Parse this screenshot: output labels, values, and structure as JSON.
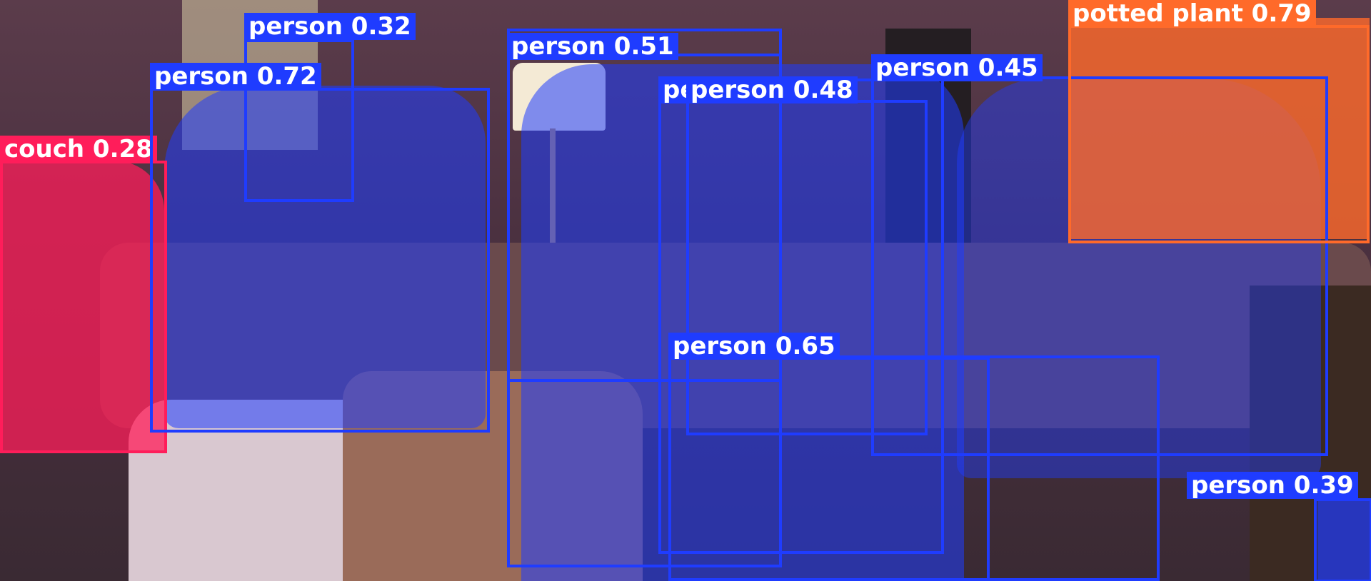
{
  "image": {
    "description_colors": {
      "wall": "#5a3a48",
      "lamp": "#f4e7cf",
      "couch": "#6b4d4f",
      "floor": "#3d2c33"
    }
  },
  "detections": [
    {
      "label": "couch 0.28",
      "class": "couch",
      "score": 0.28,
      "color": "#ff1d5a"
    },
    {
      "label": "person 0.32",
      "class": "person",
      "score": 0.32,
      "color": "#1f3cff"
    },
    {
      "label": "person 0.72",
      "class": "person",
      "score": 0.72,
      "color": "#1f3cff"
    },
    {
      "label": "person 0.51",
      "class": "person",
      "score": 0.51,
      "color": "#1f3cff"
    },
    {
      "label": "pe",
      "class": "person",
      "score": null,
      "color": "#1f3cff"
    },
    {
      "label": "person 0.48",
      "class": "person",
      "score": 0.48,
      "color": "#1f3cff"
    },
    {
      "label": "person 0.45",
      "class": "person",
      "score": 0.45,
      "color": "#1f3cff"
    },
    {
      "label": "potted plant 0.79",
      "class": "potted plant",
      "score": 0.79,
      "color": "#ff6a2a"
    },
    {
      "label": "person 0.65",
      "class": "person",
      "score": 0.65,
      "color": "#1f3cff"
    },
    {
      "label": "person 0.39",
      "class": "person",
      "score": 0.39,
      "color": "#1f3cff"
    }
  ]
}
